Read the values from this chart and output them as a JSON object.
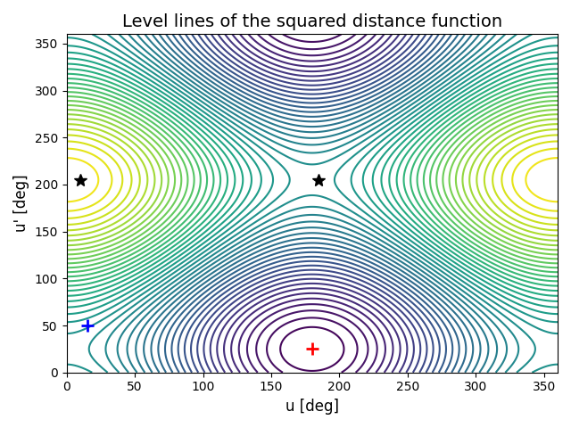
{
  "title": "Level lines of the squared distance function",
  "xlabel": "u [deg]",
  "ylabel": "u' [deg]",
  "xmin": 0,
  "xmax": 360,
  "ymin": 0,
  "ymax": 360,
  "ref_u": 180,
  "ref_v": 25,
  "blue_cross_u": 15,
  "blue_cross_v": 50,
  "star1_u": 10,
  "star1_v": 205,
  "star2_u": 185,
  "star2_v": 205,
  "n_levels": 50,
  "colormap": "viridis",
  "xticks": [
    0,
    50,
    100,
    150,
    200,
    250,
    300,
    350
  ],
  "yticks": [
    0,
    50,
    100,
    150,
    200,
    250,
    300,
    350
  ],
  "title_fontsize": 14,
  "obs_u": 180,
  "obs_v": 205
}
